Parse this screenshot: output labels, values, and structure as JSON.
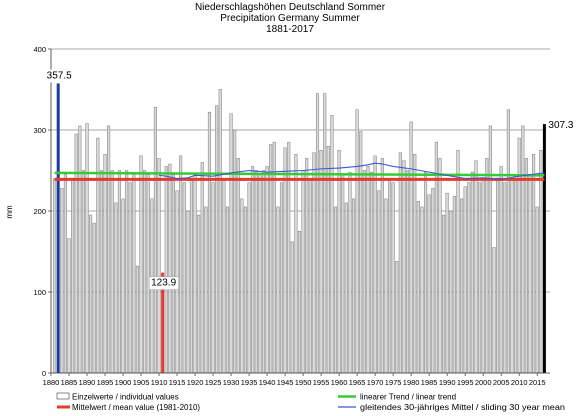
{
  "chart_data": {
    "type": "bar",
    "title": "Niederschlagshöhen Deutschland Sommer",
    "subtitle": "Precipitation Germany Summer",
    "period": "1881-2017",
    "ylabel": "mm",
    "xlim": [
      1880,
      2018
    ],
    "ylim": [
      0,
      400
    ],
    "xticks": [
      1880,
      1885,
      1890,
      1895,
      1900,
      1905,
      1910,
      1915,
      1920,
      1925,
      1930,
      1935,
      1940,
      1945,
      1950,
      1955,
      1960,
      1965,
      1970,
      1975,
      1980,
      1985,
      1990,
      1995,
      2000,
      2005,
      2010,
      2015
    ],
    "yticks": [
      0,
      100,
      200,
      300,
      400
    ],
    "grid": true,
    "legend": "bottom",
    "x": [
      1881,
      1882,
      1883,
      1884,
      1885,
      1886,
      1887,
      1888,
      1889,
      1890,
      1891,
      1892,
      1893,
      1894,
      1895,
      1896,
      1897,
      1898,
      1899,
      1900,
      1901,
      1902,
      1903,
      1904,
      1905,
      1906,
      1907,
      1908,
      1909,
      1910,
      1911,
      1912,
      1913,
      1914,
      1915,
      1916,
      1917,
      1918,
      1919,
      1920,
      1921,
      1922,
      1923,
      1924,
      1925,
      1926,
      1927,
      1928,
      1929,
      1930,
      1931,
      1932,
      1933,
      1934,
      1935,
      1936,
      1937,
      1938,
      1939,
      1940,
      1941,
      1942,
      1943,
      1944,
      1945,
      1946,
      1947,
      1948,
      1949,
      1950,
      1951,
      1952,
      1953,
      1954,
      1955,
      1956,
      1957,
      1958,
      1959,
      1960,
      1961,
      1962,
      1963,
      1964,
      1965,
      1966,
      1967,
      1968,
      1969,
      1970,
      1971,
      1972,
      1973,
      1974,
      1975,
      1976,
      1977,
      1978,
      1979,
      1980,
      1981,
      1982,
      1983,
      1984,
      1985,
      1986,
      1987,
      1988,
      1989,
      1990,
      1991,
      1992,
      1993,
      1994,
      1995,
      1996,
      1997,
      1998,
      1999,
      2000,
      2001,
      2002,
      2003,
      2004,
      2005,
      2006,
      2007,
      2008,
      2009,
      2010,
      2011,
      2012,
      2013,
      2014,
      2015,
      2016,
      2017
    ],
    "series": [
      {
        "name": "Einzelwerte / individual values",
        "color": "#d9d9d9",
        "values": [
          240,
          357.5,
          228,
          245,
          166,
          240,
          295,
          305,
          250,
          308,
          195,
          185,
          290,
          250,
          270,
          305,
          250,
          210,
          250,
          215,
          250,
          235,
          245,
          132,
          268,
          250,
          245,
          215,
          328,
          265,
          123.9,
          255,
          258,
          245,
          225,
          268,
          235,
          200,
          240,
          245,
          195,
          260,
          205,
          322,
          235,
          330,
          350,
          240,
          205,
          320,
          300,
          265,
          215,
          205,
          235,
          255,
          250,
          245,
          250,
          255,
          282,
          285,
          205,
          235,
          278,
          285,
          162,
          270,
          175,
          250,
          265,
          240,
          272,
          345,
          275,
          345,
          280,
          318,
          205,
          275,
          245,
          210,
          248,
          215,
          325,
          298,
          250,
          255,
          248,
          268,
          225,
          265,
          215,
          240,
          235,
          138,
          272,
          262,
          250,
          310,
          270,
          212,
          205,
          248,
          220,
          228,
          285,
          265,
          195,
          222,
          200,
          218,
          275,
          215,
          230,
          235,
          248,
          262,
          235,
          240,
          265,
          305,
          155,
          240,
          255,
          235,
          325,
          240,
          238,
          290,
          305,
          265,
          245,
          270,
          205,
          275,
          307.3
        ]
      }
    ],
    "highlights": [
      {
        "year": 1882,
        "value": 357.5,
        "label": "357.5",
        "color": "#1d3d9e",
        "position": "above"
      },
      {
        "year": 1911,
        "value": 123.9,
        "label": "123.9",
        "color": "#e53a2d",
        "position": "inside"
      },
      {
        "year": 2017,
        "value": 307.3,
        "label": "307.3",
        "color": "#000000",
        "position": "right"
      }
    ],
    "mean": {
      "name": "Mittelwert / mean value (1981-2010)",
      "value": 239,
      "color": "#e53a2d"
    },
    "trend": {
      "name": "linearer Trend / linear trend",
      "x": [
        1881,
        2017
      ],
      "values": [
        247,
        244
      ],
      "color": "#33cc33"
    },
    "sliding_mean": {
      "name": "gleitendes 30-jähriges Mittel / sliding 30 year mean",
      "color": "#3b57d6",
      "x": [
        1910,
        1912,
        1915,
        1918,
        1920,
        1925,
        1930,
        1935,
        1940,
        1945,
        1950,
        1955,
        1960,
        1965,
        1968,
        1970,
        1972,
        1975,
        1980,
        1985,
        1990,
        1995,
        2000,
        2005,
        2010,
        2015,
        2017
      ],
      "values": [
        244,
        243,
        240,
        241,
        244,
        243,
        247,
        250,
        248,
        249,
        250,
        252,
        253,
        255,
        257,
        259,
        258,
        255,
        252,
        248,
        244,
        240,
        241,
        239,
        243,
        246,
        247
      ]
    }
  }
}
